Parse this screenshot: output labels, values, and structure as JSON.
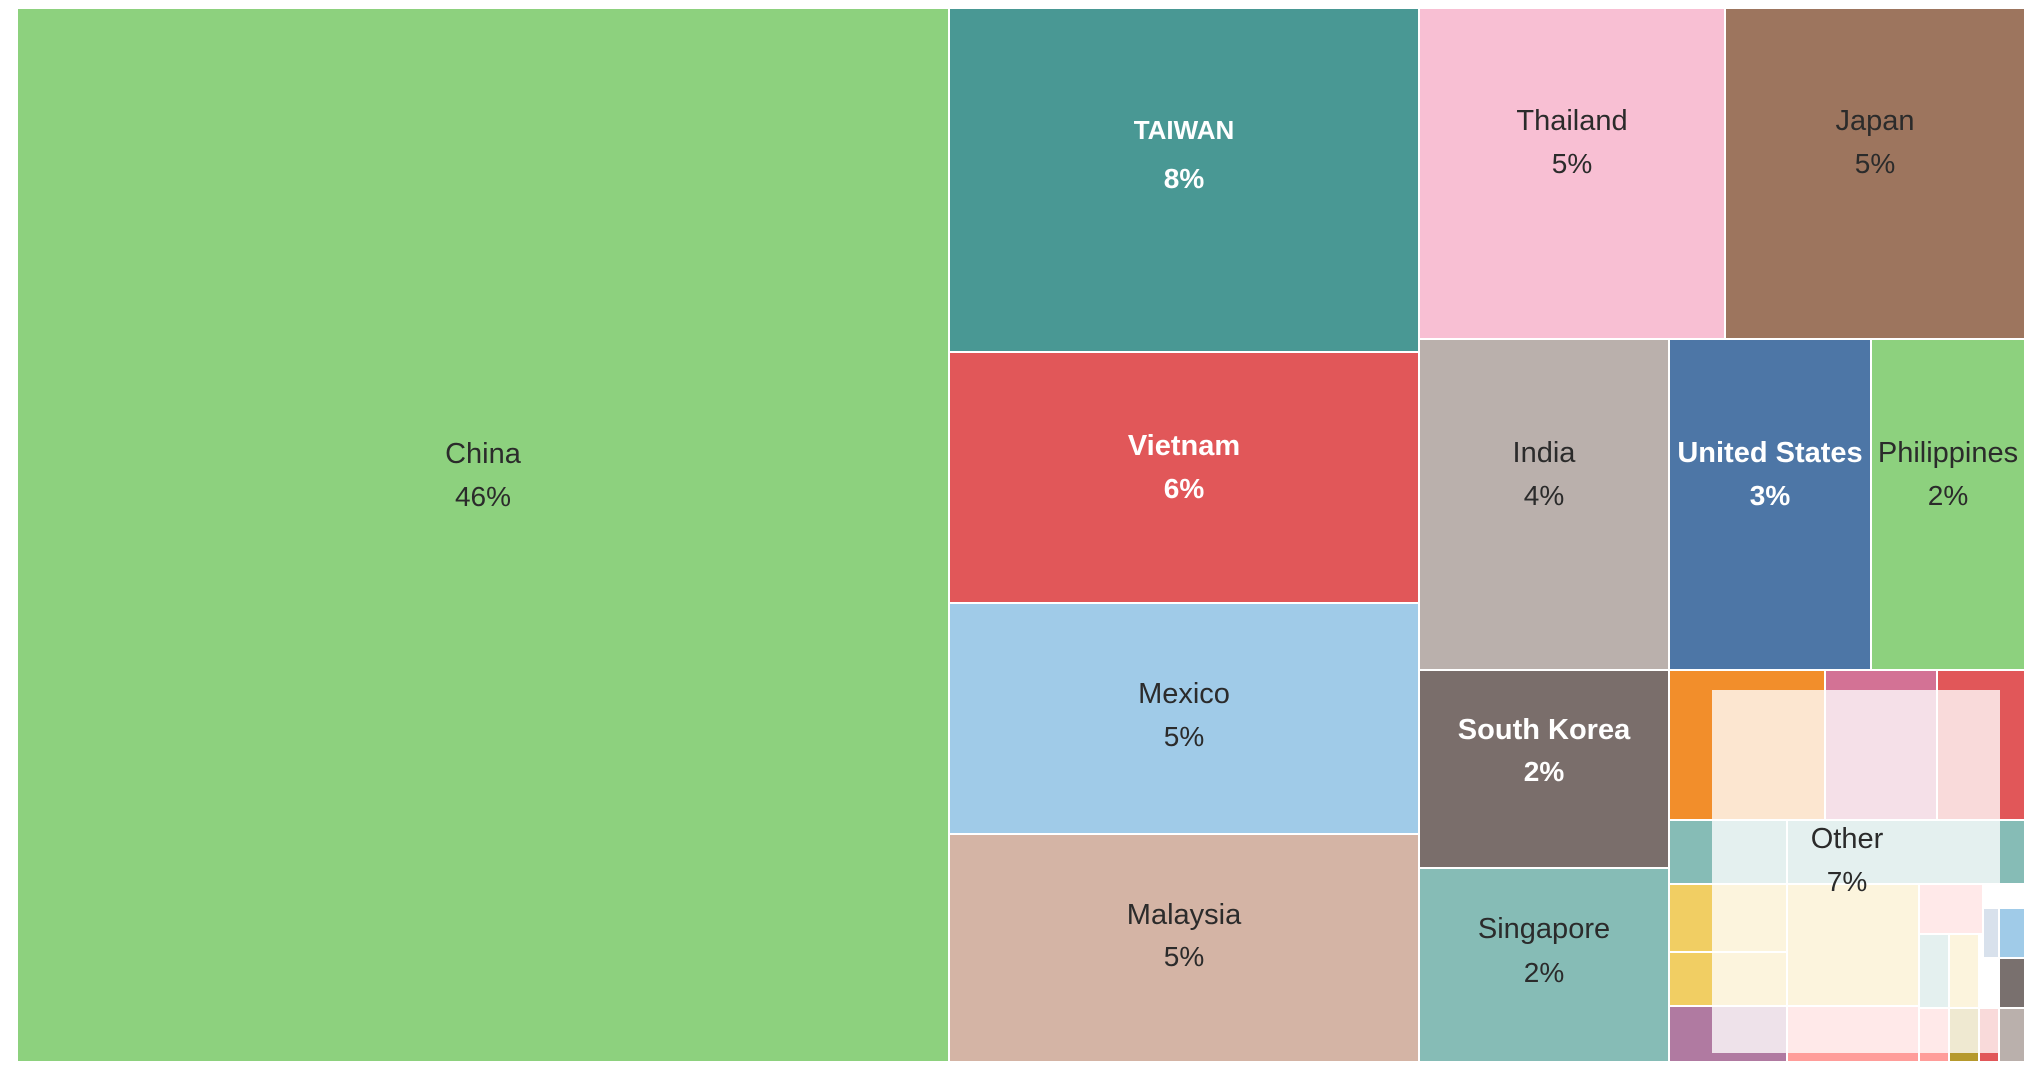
{
  "chart_data": {
    "type": "treemap",
    "items": [
      {
        "name": "China",
        "label": "46%",
        "value": 46,
        "color": "#8DD17E",
        "text_color": "#2b2b2b"
      },
      {
        "name": "TAIWAN",
        "label": "8%",
        "value": 8,
        "color": "#499894",
        "text_color": "#ffffff"
      },
      {
        "name": "Vietnam",
        "label": "6%",
        "value": 6,
        "color": "#E15759",
        "text_color": "#ffffff"
      },
      {
        "name": "Mexico",
        "label": "5%",
        "value": 5,
        "color": "#A0CBE8",
        "text_color": "#2b2b2b"
      },
      {
        "name": "Malaysia",
        "label": "5%",
        "value": 5,
        "color": "#D4B4A5",
        "text_color": "#2b2b2b"
      },
      {
        "name": "Thailand",
        "label": "5%",
        "value": 5,
        "color": "#F8BFD3",
        "text_color": "#2b2b2b"
      },
      {
        "name": "Japan",
        "label": "5%",
        "value": 5,
        "color": "#9D755E",
        "text_color": "#2b2b2b"
      },
      {
        "name": "India",
        "label": "4%",
        "value": 4,
        "color": "#BAB0AC",
        "text_color": "#2b2b2b"
      },
      {
        "name": "United States",
        "label": "3%",
        "value": 3,
        "color": "#4D76A6",
        "text_color": "#ffffff"
      },
      {
        "name": "Philippines",
        "label": "2%",
        "value": 2,
        "color": "#8DD17E",
        "text_color": "#2b2b2b"
      },
      {
        "name": "South Korea",
        "label": "2%",
        "value": 2,
        "color": "#7A6E6B",
        "text_color": "#ffffff"
      },
      {
        "name": "Singapore",
        "label": "2%",
        "value": 2,
        "color": "#86BCB6",
        "text_color": "#2b2b2b"
      },
      {
        "name": "Other",
        "label": "7%",
        "value": 7,
        "color": "#f2ece8",
        "text_color": "#2b2b2b"
      }
    ],
    "other_fill_colors": [
      "#F28E2B",
      "#D37295",
      "#E15759",
      "#86BCB6",
      "#F1CE63",
      "#B07AA1",
      "#FF9D9A",
      "#B6992D",
      "#4E79A7",
      "#A0CBE8",
      "#79706E",
      "#BAB0AC"
    ]
  }
}
